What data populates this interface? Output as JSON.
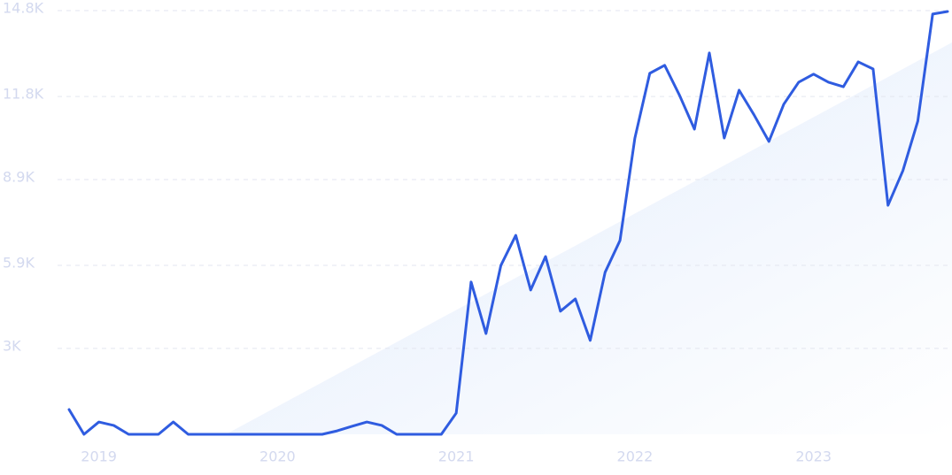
{
  "chart_data": {
    "type": "line",
    "categories": [
      null,
      null,
      "2019",
      null,
      null,
      null,
      null,
      null,
      null,
      null,
      null,
      null,
      null,
      null,
      "2020",
      null,
      null,
      null,
      null,
      null,
      null,
      null,
      null,
      null,
      null,
      null,
      "2021",
      null,
      null,
      null,
      null,
      null,
      null,
      null,
      null,
      null,
      null,
      null,
      "2022",
      null,
      null,
      null,
      null,
      null,
      null,
      null,
      null,
      null,
      null,
      null,
      "2023",
      null,
      null,
      null,
      null,
      null,
      null,
      null,
      null,
      null
    ],
    "series": [
      {
        "color": "#2f5ce0",
        "values": [
          865,
          0,
          430,
          310,
          0,
          0,
          0,
          430,
          0,
          0,
          0,
          0,
          0,
          0,
          0,
          0,
          0,
          0,
          120,
          280,
          430,
          310,
          0,
          0,
          0,
          0,
          740,
          5320,
          3520,
          5900,
          6950,
          5040,
          6210,
          4300,
          4730,
          3280,
          5660,
          6770,
          10350,
          12610,
          12890,
          11840,
          10660,
          13320,
          10350,
          12020,
          11160,
          10230,
          11530,
          12300,
          12580,
          12300,
          12140,
          13010,
          12760,
          8000,
          9210,
          10940,
          14680,
          14770
        ]
      }
    ],
    "ylim": [
      0,
      14800
    ],
    "yticks": [
      {
        "value": 3000,
        "label": "3K"
      },
      {
        "value": 5900,
        "label": "5.9K"
      },
      {
        "value": 8900,
        "label": "8.9K"
      },
      {
        "value": 11800,
        "label": "11.8K"
      },
      {
        "value": 14800,
        "label": "14.8K"
      }
    ],
    "grid": true
  }
}
